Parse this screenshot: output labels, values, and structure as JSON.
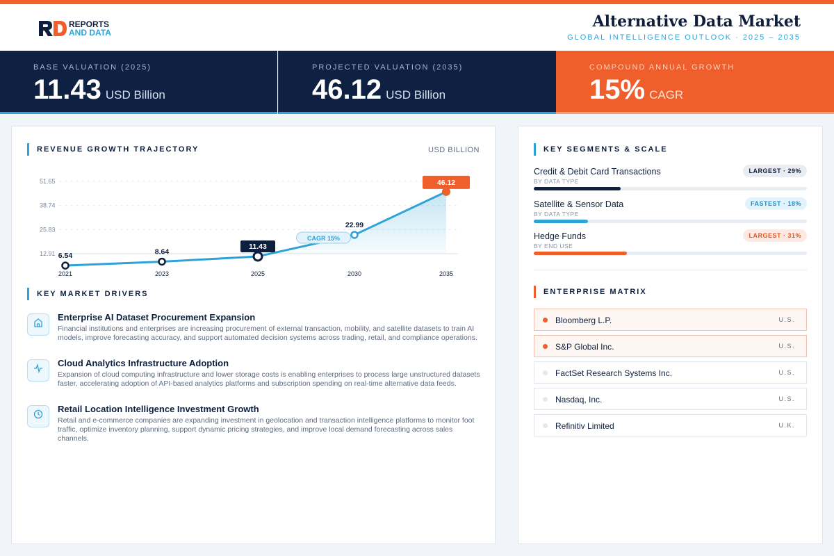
{
  "brand": {
    "line1": "REPORTS",
    "line2": "AND DATA",
    "mark_colors": [
      "#0e1f3d",
      "#ef5f2c"
    ]
  },
  "header": {
    "title": "Alternative Data Market",
    "subtitle": "GLOBAL INTELLIGENCE OUTLOOK  ·  2025 – 2035"
  },
  "stats": [
    {
      "label": "BASE VALUATION (2025)",
      "value": "11.43",
      "unit": "USD Billion"
    },
    {
      "label": "PROJECTED VALUATION (2035)",
      "value": "46.12",
      "unit": "USD Billion"
    },
    {
      "label": "COMPOUND ANNUAL GROWTH",
      "value": "15%",
      "unit": "CAGR"
    }
  ],
  "revenue": {
    "title": "REVENUE GROWTH TRAJECTORY",
    "unit": "USD BILLION"
  },
  "chart_data": {
    "type": "area",
    "x": [
      "2021",
      "2023",
      "2025",
      "2030",
      "2035"
    ],
    "values": [
      6.54,
      8.64,
      11.43,
      22.99,
      46.12
    ],
    "labels": [
      "6.54",
      "8.64",
      "11.43",
      "22.99",
      "46.12"
    ],
    "y_ticks": [
      "51.65",
      "38.74",
      "25.83",
      "12.91"
    ],
    "y_tick_values": [
      51.65,
      38.74,
      25.83,
      12.91
    ],
    "ylim": [
      0,
      51.65
    ],
    "annotation": "CAGR 15%",
    "highlight_index": 2,
    "final_index": 4,
    "grid": true,
    "colors": {
      "line": "#2fa3d8",
      "final": "#ef5f2c",
      "dark": "#0e1f3d"
    }
  },
  "drivers": {
    "title": "KEY MARKET DRIVERS",
    "items": [
      {
        "icon": "building-icon",
        "title": "Enterprise AI Dataset Procurement Expansion",
        "desc": "Financial institutions and enterprises are increasing procurement of external transaction, mobility, and satellite datasets to train AI models, improve forecasting accuracy, and support automated decision systems across trading, retail, and compliance operations."
      },
      {
        "icon": "activity-icon",
        "title": "Cloud Analytics Infrastructure Adoption",
        "desc": "Expansion of cloud computing infrastructure and lower storage costs is enabling enterprises to process large unstructured datasets faster, accelerating adoption of API-based analytics platforms and subscription spending on real-time alternative data feeds."
      },
      {
        "icon": "clock-icon",
        "title": "Retail Location Intelligence Investment Growth",
        "desc": "Retail and e-commerce companies are expanding investment in geolocation and transaction intelligence platforms to monitor foot traffic, optimize inventory planning, support dynamic pricing strategies, and improve local demand forecasting across sales channels."
      }
    ]
  },
  "segments": {
    "title": "KEY SEGMENTS & SCALE",
    "items": [
      {
        "name": "Credit & Debit Card Transactions",
        "category": "BY DATA TYPE",
        "badge": "LARGEST · 29%",
        "share": 0.29,
        "fill": "#0f2143",
        "badge_bg": "#e9edf2",
        "badge_fg": "#0e1f3d"
      },
      {
        "name": "Satellite & Sensor Data",
        "category": "BY DATA TYPE",
        "badge": "FASTEST · 18%",
        "share": 0.18,
        "fill": "#2fa3d8",
        "badge_bg": "#e3f3fb",
        "badge_fg": "#1f8fc4"
      },
      {
        "name": "Hedge Funds",
        "category": "BY END USE",
        "badge": "LARGEST · 31%",
        "share": 0.31,
        "fill": "#ef5f2c",
        "badge_bg": "#fde9e1",
        "badge_fg": "#e25722"
      }
    ]
  },
  "enterprise": {
    "title": "ENTERPRISE MATRIX",
    "items": [
      {
        "name": "Bloomberg L.P.",
        "country": "U.S.",
        "highlight": true
      },
      {
        "name": "S&P Global Inc.",
        "country": "U.S.",
        "highlight": true
      },
      {
        "name": "FactSet Research Systems Inc.",
        "country": "U.S.",
        "highlight": false
      },
      {
        "name": "Nasdaq, Inc.",
        "country": "U.S.",
        "highlight": false
      },
      {
        "name": "Refinitiv Limited",
        "country": "U.K.",
        "highlight": false
      }
    ]
  }
}
